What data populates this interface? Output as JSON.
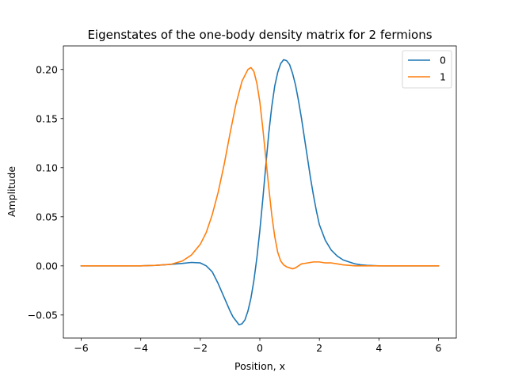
{
  "chart_data": {
    "type": "line",
    "title": "Eigenstates of the one-body density matrix for 2 fermions",
    "xlabel": "Position, x",
    "ylabel": "Amplitude",
    "xlim": [
      -6.6,
      6.6
    ],
    "ylim": [
      -0.0735,
      0.224
    ],
    "xticks": [
      -6,
      -4,
      -2,
      0,
      2,
      4,
      6
    ],
    "xtick_labels": [
      "−6",
      "−4",
      "−2",
      "0",
      "2",
      "4",
      "6"
    ],
    "yticks": [
      -0.05,
      0.0,
      0.05,
      0.1,
      0.15,
      0.2
    ],
    "ytick_labels": [
      "−0.05",
      "0.00",
      "0.05",
      "0.10",
      "0.15",
      "0.20"
    ],
    "grid": false,
    "legend_position": "top-right",
    "series": [
      {
        "name": "0",
        "color": "#1f77b4",
        "x": [
          -6.0,
          -5.0,
          -4.0,
          -3.5,
          -3.0,
          -2.6,
          -2.3,
          -2.0,
          -1.8,
          -1.6,
          -1.4,
          -1.2,
          -1.0,
          -0.9,
          -0.8,
          -0.7,
          -0.6,
          -0.5,
          -0.4,
          -0.3,
          -0.2,
          -0.1,
          0.0,
          0.1,
          0.2,
          0.3,
          0.4,
          0.5,
          0.6,
          0.7,
          0.8,
          0.9,
          1.0,
          1.1,
          1.2,
          1.3,
          1.4,
          1.5,
          1.6,
          1.7,
          1.8,
          1.9,
          2.0,
          2.2,
          2.4,
          2.6,
          2.8,
          3.0,
          3.2,
          3.4,
          3.6,
          4.0,
          5.0,
          6.0
        ],
        "y": [
          0.0,
          0.0,
          0.0,
          0.0005,
          0.0015,
          0.0025,
          0.0035,
          0.003,
          0.0,
          -0.006,
          -0.018,
          -0.032,
          -0.046,
          -0.052,
          -0.056,
          -0.06,
          -0.059,
          -0.055,
          -0.046,
          -0.033,
          -0.015,
          0.008,
          0.036,
          0.068,
          0.102,
          0.135,
          0.162,
          0.183,
          0.197,
          0.206,
          0.21,
          0.209,
          0.205,
          0.196,
          0.184,
          0.168,
          0.15,
          0.13,
          0.11,
          0.09,
          0.072,
          0.056,
          0.042,
          0.026,
          0.016,
          0.01,
          0.006,
          0.004,
          0.002,
          0.001,
          0.0005,
          0.0,
          0.0,
          0.0
        ]
      },
      {
        "name": "1",
        "color": "#ff7f0e",
        "x": [
          -6.0,
          -5.0,
          -4.0,
          -3.5,
          -3.0,
          -2.6,
          -2.3,
          -2.0,
          -1.8,
          -1.6,
          -1.4,
          -1.2,
          -1.0,
          -0.8,
          -0.6,
          -0.4,
          -0.3,
          -0.2,
          -0.1,
          0.0,
          0.1,
          0.2,
          0.3,
          0.4,
          0.5,
          0.6,
          0.7,
          0.8,
          0.9,
          1.0,
          1.1,
          1.2,
          1.3,
          1.4,
          1.6,
          1.8,
          2.0,
          2.2,
          2.4,
          2.6,
          2.8,
          3.0,
          3.2,
          3.4,
          3.6,
          4.0,
          5.0,
          6.0
        ],
        "y": [
          0.0,
          0.0,
          0.0,
          0.0005,
          0.0015,
          0.005,
          0.011,
          0.022,
          0.034,
          0.052,
          0.075,
          0.103,
          0.135,
          0.165,
          0.188,
          0.2,
          0.202,
          0.198,
          0.186,
          0.167,
          0.14,
          0.11,
          0.08,
          0.052,
          0.03,
          0.014,
          0.005,
          0.001,
          -0.001,
          -0.002,
          -0.003,
          -0.002,
          0.0,
          0.002,
          0.003,
          0.004,
          0.004,
          0.003,
          0.003,
          0.002,
          0.001,
          0.0005,
          0.0,
          0.0,
          0.0,
          0.0,
          0.0,
          0.0
        ]
      }
    ]
  }
}
